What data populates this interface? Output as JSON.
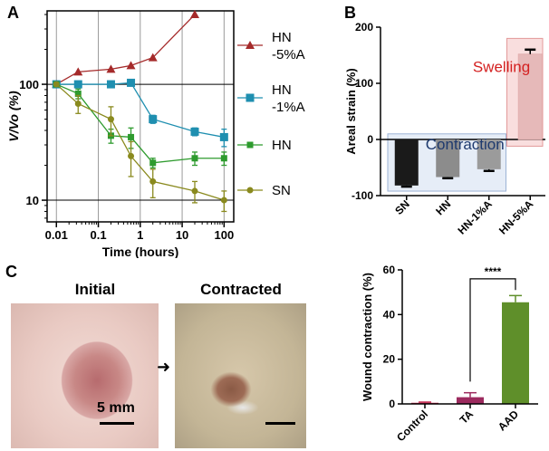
{
  "panels": {
    "a": "A",
    "b": "B",
    "c": "C"
  },
  "photos": {
    "initial_title": "Initial",
    "contracted_title": "Contracted",
    "scalebar_label": "5 mm",
    "arrow_glyph": "➜"
  },
  "chart_data": [
    {
      "id": "A",
      "type": "line",
      "title": "",
      "xlabel": "Time (hours)",
      "ylabel": "V/Vo (%)",
      "xscale": "log",
      "yscale": "log",
      "xlim": [
        0.006,
        170
      ],
      "ylim": [
        6.5,
        430
      ],
      "xticks": [
        0.01,
        0.1,
        1,
        10,
        100
      ],
      "xtick_labels": [
        "0.01",
        "0.1",
        "1",
        "10",
        "100"
      ],
      "yticks": [
        10,
        100
      ],
      "ytick_labels": [
        "10",
        "100"
      ],
      "grid": true,
      "legend": "right, labels next to markers",
      "series": [
        {
          "name": "HN\n-5%A",
          "color": "#a52a2a",
          "marker": "triangle",
          "x": [
            0.01,
            0.033,
            0.2,
            0.6,
            2,
            20
          ],
          "y": [
            100,
            128,
            135,
            145,
            170,
            400
          ],
          "err": [
            0,
            0,
            0,
            0,
            0,
            0
          ]
        },
        {
          "name": "HN\n-1%A",
          "color": "#1f8fb0",
          "marker": "square",
          "x": [
            0.01,
            0.033,
            0.2,
            0.6,
            2,
            20,
            100
          ],
          "y": [
            100,
            100,
            100,
            103,
            50,
            39,
            35
          ],
          "err": [
            0,
            0,
            0,
            5,
            4,
            3,
            6
          ]
        },
        {
          "name": "HN",
          "color": "#2e9b2e",
          "marker": "small-square",
          "x": [
            0.01,
            0.033,
            0.2,
            0.6,
            2,
            20,
            100
          ],
          "y": [
            100,
            83,
            36,
            35,
            21,
            23,
            23
          ],
          "err": [
            0,
            8,
            5,
            7,
            2,
            3,
            3
          ]
        },
        {
          "name": "SN",
          "color": "#8a8a1e",
          "marker": "circle",
          "x": [
            0.01,
            0.033,
            0.2,
            0.6,
            2,
            20,
            100
          ],
          "y": [
            100,
            68,
            50,
            24,
            14.5,
            12,
            10
          ],
          "err": [
            0,
            12,
            14,
            8,
            4,
            2.5,
            2
          ]
        }
      ]
    },
    {
      "id": "B",
      "type": "bar",
      "title": "",
      "xlabel": "",
      "ylabel": "Areal strain (%)",
      "categories": [
        "SN",
        "HN",
        "HN-1%A",
        "HN-5%A"
      ],
      "values": [
        -82,
        -67,
        -53,
        152
      ],
      "errors": [
        2,
        2,
        3,
        8
      ],
      "colors": [
        "#1a1a1a",
        "#8c8c8c",
        "#9b9b9b",
        "#e6b9b9"
      ],
      "ylim": [
        -100,
        200
      ],
      "yticks": [
        -100,
        0,
        100,
        200
      ],
      "ytick_labels": [
        "-100",
        "0",
        "100",
        "200"
      ],
      "annotations": [
        {
          "text": "Contraction",
          "color": "#1e3a6e"
        },
        {
          "text": "Swelling",
          "color": "#d42020"
        }
      ]
    },
    {
      "id": "C",
      "type": "bar",
      "title": "",
      "xlabel": "",
      "ylabel": "Wound contraction (%)",
      "categories": [
        "Control",
        "TA",
        "AAD"
      ],
      "values": [
        0.5,
        3,
        45.5
      ],
      "errors": [
        0.3,
        2,
        3
      ],
      "colors": [
        "#c4224a",
        "#9c2a5e",
        "#5f8f2a"
      ],
      "ylim": [
        0,
        60
      ],
      "yticks": [
        0,
        20,
        40,
        60
      ],
      "ytick_labels": [
        "0",
        "20",
        "40",
        "60"
      ],
      "significance": {
        "text": "****",
        "between": [
          "TA",
          "AAD"
        ]
      }
    }
  ]
}
